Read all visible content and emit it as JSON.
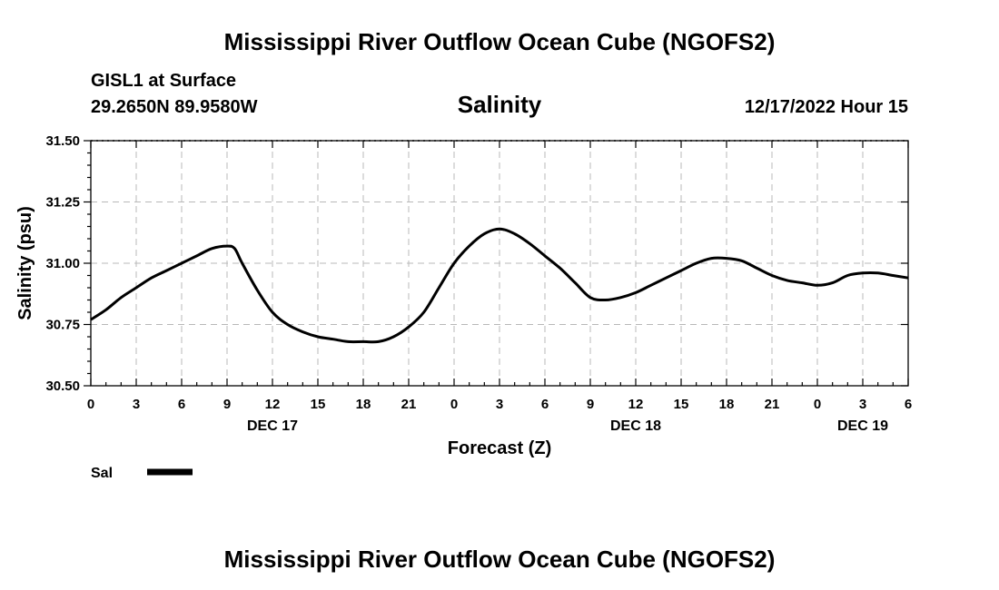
{
  "header": {
    "title": "Mississippi River Outflow Ocean Cube (NGOFS2)",
    "station": "GISL1 at Surface",
    "coords": "29.2650N  89.9580W",
    "datetime": "12/17/2022 Hour 15",
    "footer_title": "Mississippi River Outflow Ocean Cube (NGOFS2)"
  },
  "chart_data": {
    "type": "line",
    "title": "Salinity",
    "xlabel": "Forecast (Z)",
    "ylabel": "Salinity (psu)",
    "ylim": [
      30.5,
      31.5
    ],
    "xlim": [
      0,
      54
    ],
    "yticks": [
      {
        "v": 30.5,
        "label": "30.50"
      },
      {
        "v": 30.75,
        "label": "30.75"
      },
      {
        "v": 31.0,
        "label": "31.00"
      },
      {
        "v": 31.25,
        "label": "31.25"
      },
      {
        "v": 31.5,
        "label": "31.50"
      }
    ],
    "xticks": [
      {
        "v": 0,
        "label": "0"
      },
      {
        "v": 3,
        "label": "3"
      },
      {
        "v": 6,
        "label": "6"
      },
      {
        "v": 9,
        "label": "9"
      },
      {
        "v": 12,
        "label": "12"
      },
      {
        "v": 15,
        "label": "15"
      },
      {
        "v": 18,
        "label": "18"
      },
      {
        "v": 21,
        "label": "21"
      },
      {
        "v": 24,
        "label": "0"
      },
      {
        "v": 27,
        "label": "3"
      },
      {
        "v": 30,
        "label": "6"
      },
      {
        "v": 33,
        "label": "9"
      },
      {
        "v": 36,
        "label": "12"
      },
      {
        "v": 39,
        "label": "15"
      },
      {
        "v": 42,
        "label": "18"
      },
      {
        "v": 45,
        "label": "21"
      },
      {
        "v": 48,
        "label": "0"
      },
      {
        "v": 51,
        "label": "3"
      },
      {
        "v": 54,
        "label": "6"
      }
    ],
    "day_labels": [
      {
        "v": 12,
        "label": "DEC 17"
      },
      {
        "v": 36,
        "label": "DEC 18"
      },
      {
        "v": 51,
        "label": "DEC 19"
      }
    ],
    "grid": true,
    "series": [
      {
        "name": "Sal",
        "color": "#000000",
        "x": [
          0,
          1,
          2,
          3,
          4,
          5,
          6,
          7,
          8,
          9,
          9.5,
          10,
          11,
          12,
          13,
          14,
          15,
          16,
          17,
          18,
          19,
          20,
          21,
          22,
          23,
          24,
          25,
          26,
          27,
          28,
          29,
          30,
          31,
          32,
          33,
          34,
          35,
          36,
          37,
          38,
          39,
          40,
          41,
          42,
          43,
          44,
          45,
          46,
          47,
          48,
          49,
          50,
          51,
          52,
          53,
          54
        ],
        "values": [
          30.77,
          30.81,
          30.86,
          30.9,
          30.94,
          30.97,
          31.0,
          31.03,
          31.06,
          31.07,
          31.06,
          31.0,
          30.89,
          30.8,
          30.75,
          30.72,
          30.7,
          30.69,
          30.68,
          30.68,
          30.68,
          30.7,
          30.74,
          30.8,
          30.9,
          31.0,
          31.07,
          31.12,
          31.14,
          31.12,
          31.08,
          31.03,
          30.98,
          30.92,
          30.86,
          30.85,
          30.86,
          30.88,
          30.91,
          30.94,
          30.97,
          31.0,
          31.02,
          31.02,
          31.01,
          30.98,
          30.95,
          30.93,
          30.92,
          30.91,
          30.92,
          30.95,
          30.96,
          30.96,
          30.95,
          30.94
        ]
      }
    ],
    "legend": [
      {
        "name": "Sal"
      }
    ]
  }
}
